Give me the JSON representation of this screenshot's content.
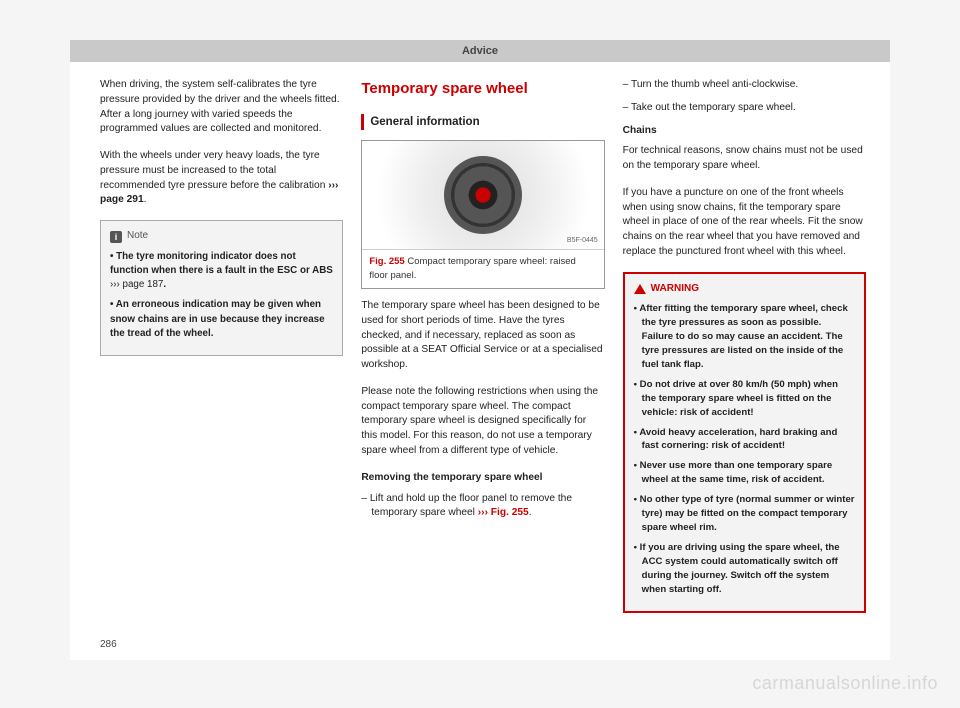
{
  "header": "Advice",
  "page_number": "286",
  "watermark": "carmanualsonline.info",
  "col1": {
    "p1": "When driving, the system self-calibrates the tyre pressure provided by the driver and the wheels fitted. After a long journey with varied speeds the programmed values are collected and monitored.",
    "p2a": "With the wheels under very heavy loads, the tyre pressure must be increased to the total recommended tyre pressure before the calibration ",
    "p2ref": "››› page 291",
    "p2b": ".",
    "note_label": "Note",
    "note1a": "• The tyre monitoring indicator does not function when there is a fault in the ESC or ABS ",
    "note1ref": "››› page 187",
    "note1b": ".",
    "note2": "• An erroneous indication may be given when snow chains are in use because they increase the tread of the wheel."
  },
  "col2": {
    "title": "Temporary spare wheel",
    "sub": "General information",
    "fig_code": "B5F-0445",
    "fig_num": "Fig. 255",
    "fig_caption": "  Compact temporary spare wheel: raised floor panel.",
    "p1": "The temporary spare wheel has been designed to be used for short periods of time. Have the tyres checked, and if necessary, replaced as soon as possible at a SEAT Official Service or at a specialised workshop.",
    "p2": "Please note the following restrictions when using the compact temporary spare wheel. The compact temporary spare wheel is designed specifically for this model. For this reason, do not use a temporary spare wheel from a different type of vehicle.",
    "remove_head": "Removing the temporary spare wheel",
    "remove1a": "– Lift and hold up the floor panel to remove the temporary spare wheel ",
    "remove1ref": "››› Fig. 255",
    "remove1b": "."
  },
  "col3": {
    "d1": "– Turn the thumb wheel anti-clockwise.",
    "d2": "– Take out the temporary spare wheel.",
    "chains_head": "Chains",
    "chains_p1": "For technical reasons, snow chains must not be used on the temporary spare wheel.",
    "chains_p2": "If you have a puncture on one of the front wheels when using snow chains, fit the temporary spare wheel in place of one of the rear wheels. Fit the snow chains on the rear wheel that you have removed and replace the punctured front wheel with this wheel.",
    "warn_label": "WARNING",
    "w1": "• After fitting the temporary spare wheel, check the tyre pressures as soon as possible. Failure to do so may cause an accident. The tyre pressures are listed on the inside of the fuel tank flap.",
    "w2": "• Do not drive at over 80 km/h (50 mph) when the temporary spare wheel is fitted on the vehicle: risk of accident!",
    "w3": "• Avoid heavy acceleration, hard braking and fast cornering: risk of accident!",
    "w4": "• Never use more than one temporary spare wheel at the same time, risk of accident.",
    "w5": "• No other type of tyre (normal summer or winter tyre) may be fitted on the compact temporary spare wheel rim.",
    "w6": "• If you are driving using the spare wheel, the ACC system could automatically switch off during the journey. Switch off the system when starting off."
  }
}
